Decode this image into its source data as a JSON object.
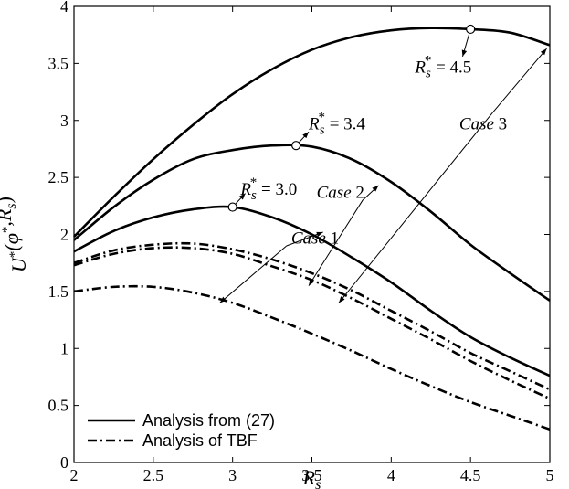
{
  "chart_data": {
    "type": "line",
    "xlabel": "R_s",
    "ylabel": "U*(φ*,R_s)",
    "xlim": [
      2,
      5
    ],
    "ylim": [
      0,
      4
    ],
    "xticks": [
      2,
      2.5,
      3,
      3.5,
      4,
      4.5,
      5
    ],
    "yticks": [
      0,
      0.5,
      1,
      1.5,
      2,
      2.5,
      3,
      3.5,
      4
    ],
    "grid": false,
    "legend_position": "bottom-left",
    "legend": [
      {
        "label": "Analysis from (27)",
        "style": "solid"
      },
      {
        "label": "Analysis of TBF",
        "style": "dash-dot"
      }
    ],
    "series": [
      {
        "style": "solid",
        "x": [
          2,
          2.25,
          2.5,
          2.75,
          3,
          3.25,
          3.5,
          3.75,
          4,
          4.25,
          4.5,
          4.75,
          5
        ],
        "y": [
          1.98,
          2.33,
          2.66,
          2.96,
          3.23,
          3.45,
          3.62,
          3.73,
          3.79,
          3.81,
          3.8,
          3.77,
          3.66
        ]
      },
      {
        "style": "solid",
        "x": [
          2,
          2.25,
          2.5,
          2.75,
          3,
          3.25,
          3.5,
          3.75,
          4,
          4.25,
          4.5,
          4.75,
          5
        ],
        "y": [
          1.95,
          2.24,
          2.48,
          2.66,
          2.74,
          2.78,
          2.77,
          2.66,
          2.46,
          2.2,
          1.91,
          1.66,
          1.42
        ]
      },
      {
        "style": "solid",
        "x": [
          2,
          2.25,
          2.5,
          2.75,
          3,
          3.25,
          3.5,
          3.75,
          4,
          4.25,
          4.5,
          4.75,
          5
        ],
        "y": [
          1.85,
          2.03,
          2.15,
          2.22,
          2.24,
          2.15,
          2.0,
          1.8,
          1.58,
          1.33,
          1.1,
          0.92,
          0.76
        ]
      },
      {
        "style": "dash-dot",
        "x": [
          2,
          2.25,
          2.5,
          2.75,
          3,
          3.25,
          3.5,
          3.75,
          4,
          4.25,
          4.5,
          4.75,
          5
        ],
        "y": [
          1.75,
          1.86,
          1.91,
          1.92,
          1.87,
          1.78,
          1.66,
          1.51,
          1.33,
          1.15,
          0.96,
          0.8,
          0.64
        ]
      },
      {
        "style": "dash-dot",
        "x": [
          2,
          2.25,
          2.5,
          2.75,
          3,
          3.25,
          3.5,
          3.75,
          4,
          4.25,
          4.5,
          4.75,
          5
        ],
        "y": [
          1.73,
          1.83,
          1.88,
          1.88,
          1.83,
          1.72,
          1.6,
          1.44,
          1.26,
          1.08,
          0.89,
          0.72,
          0.56
        ]
      },
      {
        "style": "dash-dot",
        "x": [
          2,
          2.25,
          2.5,
          2.75,
          3,
          3.25,
          3.5,
          3.75,
          4,
          4.25,
          4.5,
          4.75,
          5
        ],
        "y": [
          1.5,
          1.54,
          1.54,
          1.49,
          1.4,
          1.27,
          1.13,
          0.98,
          0.82,
          0.67,
          0.53,
          0.41,
          0.29
        ]
      }
    ],
    "markers": [
      {
        "x": 3.0,
        "y": 2.24,
        "label": "R_s* = 3.0",
        "text_pos": [
          3.05,
          2.35
        ],
        "arrow_to": [
          3.08,
          2.36
        ]
      },
      {
        "x": 3.4,
        "y": 2.78,
        "label": "R_s* = 3.4",
        "text_pos": [
          3.48,
          2.92
        ],
        "arrow_to": [
          3.48,
          2.9
        ]
      },
      {
        "x": 4.5,
        "y": 3.8,
        "label": "R_s* = 4.5",
        "text_pos": [
          4.15,
          3.42
        ],
        "arrow_to": [
          4.45,
          3.56
        ]
      }
    ],
    "annotations": [
      {
        "text": "Case 1",
        "pos": [
          3.52,
          1.92
        ],
        "arrows": [
          [
            3.34,
            1.9,
            2.92,
            1.4
          ],
          [
            3.34,
            1.9,
            3.57,
            2.02
          ]
        ]
      },
      {
        "text": "Case 2",
        "pos": [
          3.68,
          2.32
        ],
        "arrows": [
          [
            3.82,
            2.3,
            3.92,
            2.43
          ],
          [
            3.82,
            2.3,
            3.48,
            1.55
          ]
        ]
      },
      {
        "text": "Case 3",
        "pos": [
          4.58,
          2.92
        ],
        "arrows": [
          [
            4.64,
            3.07,
            4.98,
            3.63
          ],
          [
            4.64,
            3.07,
            3.67,
            1.4
          ]
        ]
      }
    ]
  }
}
